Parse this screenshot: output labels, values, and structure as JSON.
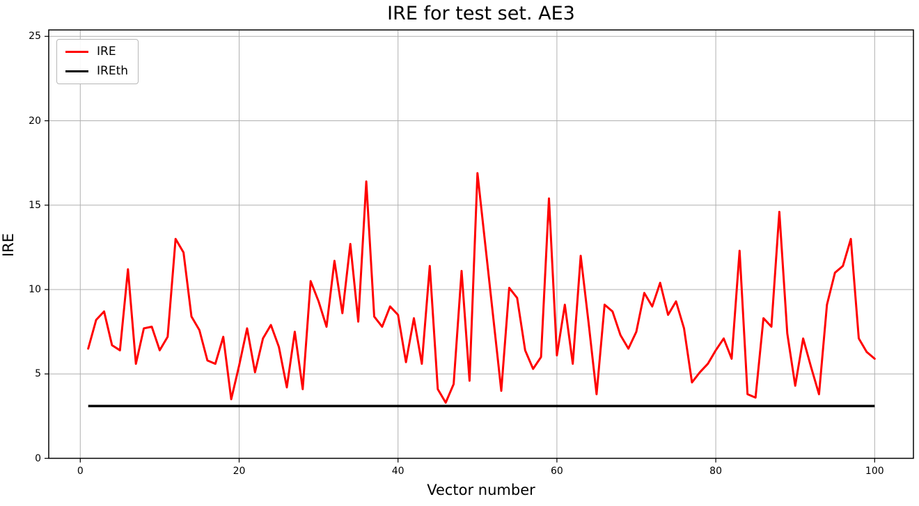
{
  "figure": {
    "title": "IRE for test set. AE3",
    "xlabel": "Vector number",
    "ylabel": "IRE"
  },
  "chart_data": {
    "type": "line",
    "title": "IRE for test set. AE3",
    "xlabel": "Vector number",
    "ylabel": "IRE",
    "grid": true,
    "legend_position": "upper left",
    "x_ticks": [
      0,
      20,
      40,
      60,
      80,
      100
    ],
    "y_ticks": [
      0,
      5,
      10,
      15,
      20,
      25
    ],
    "xlim": [
      -3.95,
      104.95
    ],
    "ylim": [
      0,
      25.4
    ],
    "x_start": 1,
    "x_step": 1,
    "series": [
      {
        "name": "IRE",
        "color": "#ff0000",
        "line_width": 3,
        "values": [
          6.5,
          8.2,
          8.7,
          6.7,
          6.4,
          11.2,
          5.6,
          7.7,
          7.8,
          6.4,
          7.2,
          13.0,
          12.2,
          8.4,
          7.6,
          5.8,
          5.6,
          7.2,
          3.5,
          5.5,
          7.7,
          5.1,
          7.1,
          7.9,
          6.6,
          4.2,
          7.5,
          4.1,
          10.5,
          9.3,
          7.8,
          11.7,
          8.6,
          12.7,
          8.1,
          16.4,
          8.4,
          7.8,
          9.0,
          8.5,
          5.7,
          8.3,
          5.6,
          11.4,
          4.1,
          3.3,
          4.4,
          11.1,
          4.6,
          16.9,
          12.6,
          8.3,
          4.0,
          10.1,
          9.5,
          6.4,
          5.3,
          6.0,
          15.4,
          6.1,
          9.1,
          5.6,
          12.0,
          8.0,
          3.8,
          9.1,
          8.7,
          7.3,
          6.5,
          7.5,
          9.8,
          9.0,
          10.4,
          8.5,
          9.3,
          7.7,
          4.5,
          5.1,
          5.6,
          6.4,
          7.1,
          5.9,
          12.3,
          3.8,
          3.6,
          8.3,
          7.8,
          14.6,
          7.4,
          4.3,
          7.1,
          5.4,
          3.8,
          9.1,
          11.0,
          11.4,
          13.0,
          7.1,
          6.3,
          5.9
        ]
      },
      {
        "name": "IREth",
        "color": "#000000",
        "line_width": 3.5,
        "constant_value": 3.1,
        "x_range": [
          1,
          100
        ],
        "values": [
          3.1,
          3.1
        ]
      }
    ],
    "colors": {
      "grid": "#b0b0b0",
      "spine": "#000000",
      "background": "#ffffff"
    }
  }
}
